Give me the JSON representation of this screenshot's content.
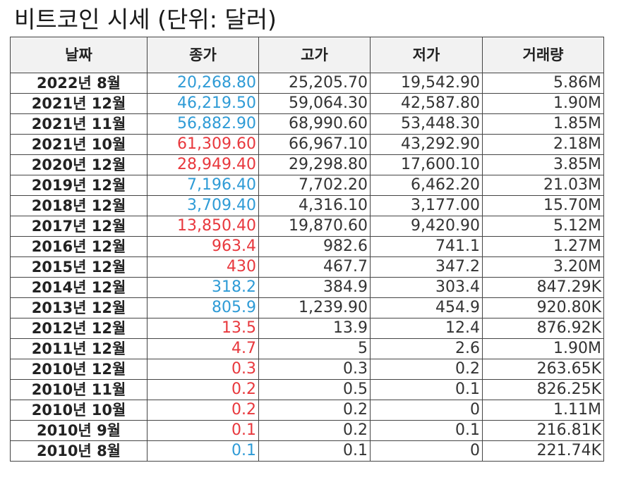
{
  "title": "비트코인 시세 (단위: 달러)",
  "colors": {
    "up": "#2e9bd6",
    "down": "#e8383d",
    "header_bg": "#f2f2f2",
    "border": "#444444"
  },
  "table": {
    "headers": [
      "날짜",
      "종가",
      "고가",
      "저가",
      "거래량"
    ],
    "rows": [
      {
        "date": "2022년 8월",
        "close": "20,268.80",
        "close_trend": "up",
        "high": "25,205.70",
        "low": "19,542.90",
        "volume": "5.86M"
      },
      {
        "date": "2021년 12월",
        "close": "46,219.50",
        "close_trend": "up",
        "high": "59,064.30",
        "low": "42,587.80",
        "volume": "1.90M"
      },
      {
        "date": "2021년 11월",
        "close": "56,882.90",
        "close_trend": "up",
        "high": "68,990.60",
        "low": "53,448.30",
        "volume": "1.85M"
      },
      {
        "date": "2021년 10월",
        "close": "61,309.60",
        "close_trend": "down",
        "high": "66,967.10",
        "low": "43,292.90",
        "volume": "2.18M"
      },
      {
        "date": "2020년 12월",
        "close": "28,949.40",
        "close_trend": "down",
        "high": "29,298.80",
        "low": "17,600.10",
        "volume": "3.85M"
      },
      {
        "date": "2019년 12월",
        "close": "7,196.40",
        "close_trend": "up",
        "high": "7,702.20",
        "low": "6,462.20",
        "volume": "21.03M"
      },
      {
        "date": "2018년 12월",
        "close": "3,709.40",
        "close_trend": "up",
        "high": "4,316.10",
        "low": "3,177.00",
        "volume": "15.70M"
      },
      {
        "date": "2017년 12월",
        "close": "13,850.40",
        "close_trend": "down",
        "high": "19,870.60",
        "low": "9,420.90",
        "volume": "5.12M"
      },
      {
        "date": "2016년 12월",
        "close": "963.4",
        "close_trend": "down",
        "high": "982.6",
        "low": "741.1",
        "volume": "1.27M"
      },
      {
        "date": "2015년 12월",
        "close": "430",
        "close_trend": "down",
        "high": "467.7",
        "low": "347.2",
        "volume": "3.20M"
      },
      {
        "date": "2014년 12월",
        "close": "318.2",
        "close_trend": "up",
        "high": "384.9",
        "low": "303.4",
        "volume": "847.29K"
      },
      {
        "date": "2013년 12월",
        "close": "805.9",
        "close_trend": "up",
        "high": "1,239.90",
        "low": "454.9",
        "volume": "920.80K"
      },
      {
        "date": "2012년 12월",
        "close": "13.5",
        "close_trend": "down",
        "high": "13.9",
        "low": "12.4",
        "volume": "876.92K"
      },
      {
        "date": "2011년 12월",
        "close": "4.7",
        "close_trend": "down",
        "high": "5",
        "low": "2.6",
        "volume": "1.90M"
      },
      {
        "date": "2010년 12월",
        "close": "0.3",
        "close_trend": "down",
        "high": "0.3",
        "low": "0.2",
        "volume": "263.65K"
      },
      {
        "date": "2010년 11월",
        "close": "0.2",
        "close_trend": "down",
        "high": "0.5",
        "low": "0.1",
        "volume": "826.25K"
      },
      {
        "date": "2010년 10월",
        "close": "0.2",
        "close_trend": "down",
        "high": "0.2",
        "low": "0",
        "volume": "1.11M"
      },
      {
        "date": "2010년 9월",
        "close": "0.1",
        "close_trend": "down",
        "high": "0.2",
        "low": "0.1",
        "volume": "216.81K"
      },
      {
        "date": "2010년 8월",
        "close": "0.1",
        "close_trend": "up",
        "high": "0.1",
        "low": "0",
        "volume": "221.74K"
      }
    ]
  }
}
